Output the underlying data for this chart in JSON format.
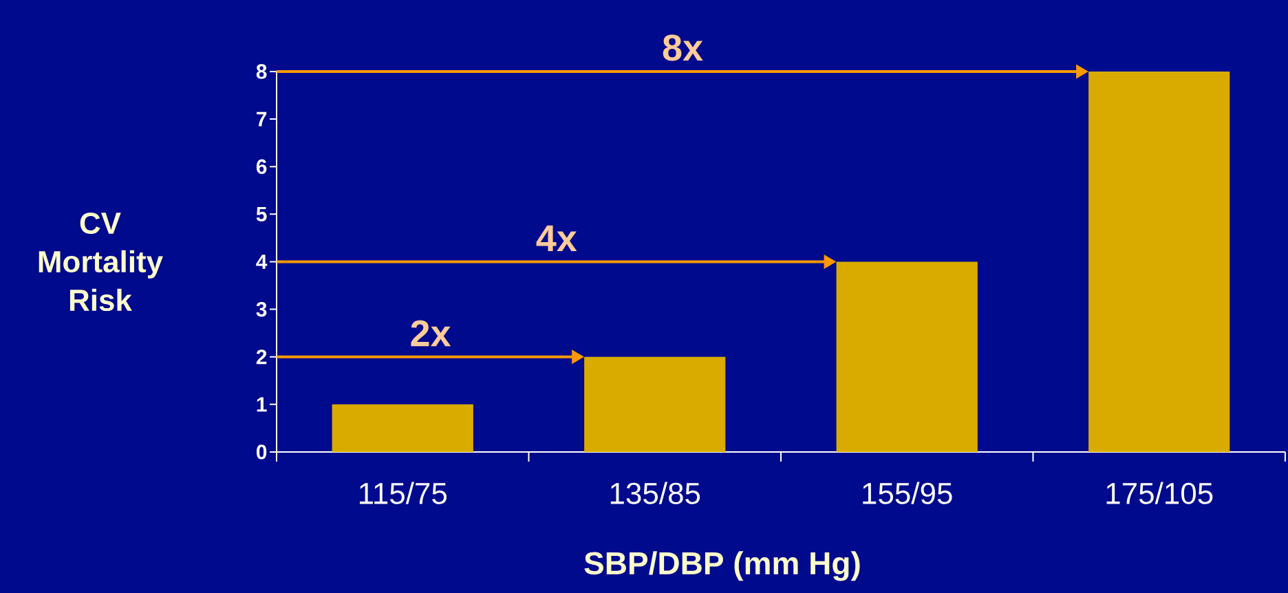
{
  "chart_data": {
    "type": "bar",
    "categories": [
      "115/75",
      "135/85",
      "155/95",
      "175/105"
    ],
    "values": [
      1,
      2,
      4,
      8
    ],
    "color": "#d9ab00",
    "ylim": [
      0,
      8
    ],
    "yticks": [
      0,
      1,
      2,
      3,
      4,
      5,
      6,
      7,
      8
    ],
    "xlabel": "SBP/DBP (mm Hg)",
    "ylabel": "CV Mortality Risk",
    "annotations": [
      "2x",
      "4x",
      "8x"
    ],
    "grid": false
  }
}
